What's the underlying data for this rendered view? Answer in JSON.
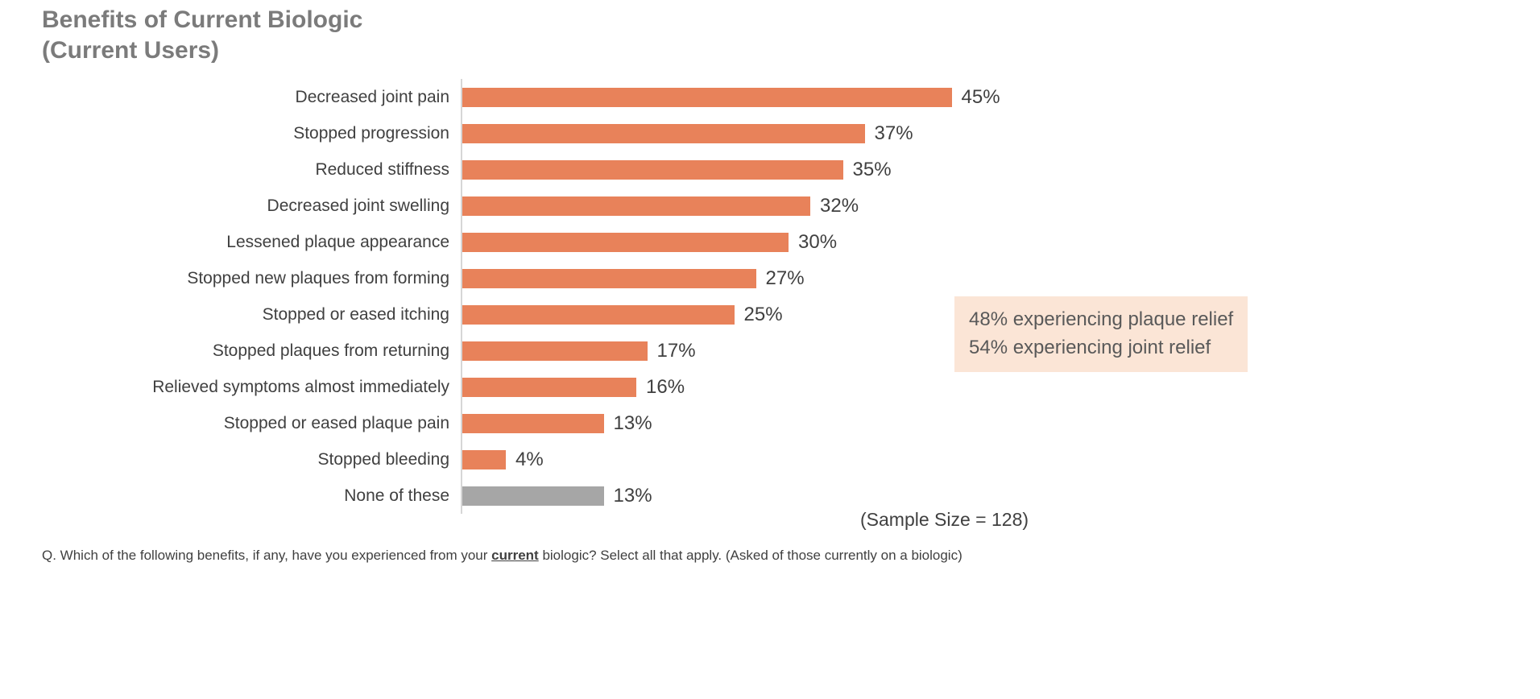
{
  "title": {
    "line1": "Benefits of Current Biologic",
    "line2": "(Current Users)"
  },
  "chart_data": {
    "type": "bar",
    "orientation": "horizontal",
    "title": "Benefits of Current Biologic (Current Users)",
    "categories": [
      "Decreased joint pain",
      "Stopped progression",
      "Reduced stiffness",
      "Decreased joint swelling",
      "Lessened plaque appearance",
      "Stopped new plaques from forming",
      "Stopped or eased itching",
      "Stopped plaques from returning",
      "Relieved symptoms almost immediately",
      "Stopped or eased plaque pain",
      "Stopped bleeding",
      "None of these"
    ],
    "values": [
      45,
      37,
      35,
      32,
      30,
      27,
      25,
      17,
      16,
      13,
      4,
      13
    ],
    "value_suffix": "%",
    "bar_colors": [
      "orange",
      "orange",
      "orange",
      "orange",
      "orange",
      "orange",
      "orange",
      "orange",
      "orange",
      "orange",
      "orange",
      "gray"
    ],
    "xlim": [
      0,
      50
    ],
    "grid": "off",
    "legend": "none",
    "annotations": [
      "48% experiencing plaque relief",
      "54% experiencing joint relief"
    ],
    "sample_size": "(Sample Size = 128)"
  },
  "palette": {
    "orange": "#e8825a",
    "gray": "#a6a6a6",
    "annotation_bg": "#fbe5d6",
    "axis_line": "#d6d6d6",
    "title_text": "#7b7b7b",
    "label_text": "#404040"
  },
  "footnote": {
    "prefix": "Q. Which of the following benefits, if any, have you experienced from your ",
    "emphasis": "current",
    "suffix": " biologic? Select all that apply.  (Asked of those currently on a biologic)"
  }
}
